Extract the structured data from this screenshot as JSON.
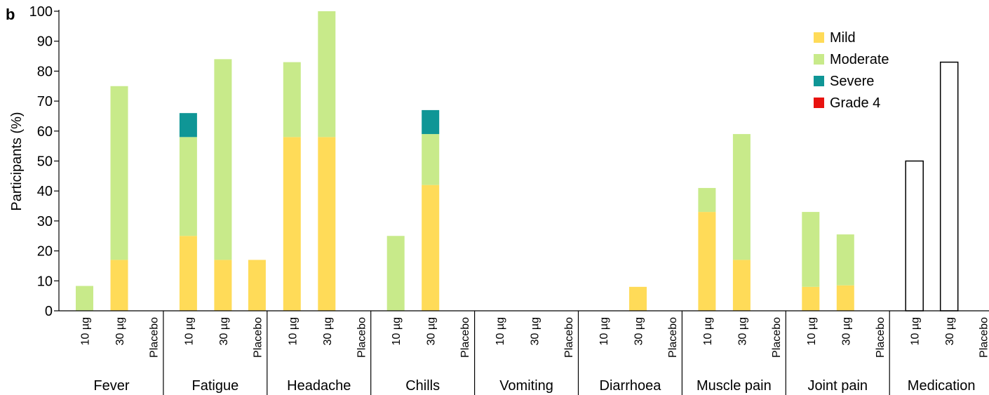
{
  "chart_data": {
    "type": "bar",
    "stacked": true,
    "panel_label": "b",
    "ylabel": "Participants (%)",
    "xlabel": "",
    "ylim": [
      0,
      100
    ],
    "yticks": [
      0,
      10,
      20,
      30,
      40,
      50,
      60,
      70,
      80,
      90,
      100
    ],
    "grid": false,
    "legend_position": "top-right",
    "dose_labels": [
      "10 µg",
      "30 µg",
      "Placebo"
    ],
    "groups": [
      "Fever",
      "Fatigue",
      "Headache",
      "Chills",
      "Vomiting",
      "Diarrhoea",
      "Muscle pain",
      "Joint pain",
      "Medication"
    ],
    "series": [
      {
        "name": "Mild",
        "color": "#FFDB58",
        "values": [
          [
            0,
            17,
            0
          ],
          [
            25,
            17,
            17
          ],
          [
            58,
            58,
            0
          ],
          [
            0,
            42,
            0
          ],
          [
            0,
            0,
            0
          ],
          [
            0,
            8,
            0
          ],
          [
            33,
            17,
            0
          ],
          [
            8,
            8.5,
            0
          ],
          [
            0,
            0,
            0
          ]
        ]
      },
      {
        "name": "Moderate",
        "color": "#C8EA8A",
        "values": [
          [
            8.3,
            58,
            0
          ],
          [
            33,
            67,
            0
          ],
          [
            25,
            42,
            0
          ],
          [
            25,
            17,
            0
          ],
          [
            0,
            0,
            0
          ],
          [
            0,
            0,
            0
          ],
          [
            8,
            42,
            0
          ],
          [
            25,
            17,
            0
          ],
          [
            0,
            0,
            0
          ]
        ]
      },
      {
        "name": "Severe",
        "color": "#0F9696",
        "values": [
          [
            0,
            0,
            0
          ],
          [
            8,
            0,
            0
          ],
          [
            0,
            0,
            0
          ],
          [
            0,
            8,
            0
          ],
          [
            0,
            0,
            0
          ],
          [
            0,
            0,
            0
          ],
          [
            0,
            0,
            0
          ],
          [
            0,
            0,
            0
          ],
          [
            0,
            0,
            0
          ]
        ]
      },
      {
        "name": "Grade 4",
        "color": "#E8120F",
        "values": [
          [
            0,
            0,
            0
          ],
          [
            0,
            0,
            0
          ],
          [
            0,
            0,
            0
          ],
          [
            0,
            0,
            0
          ],
          [
            0,
            0,
            0
          ],
          [
            0,
            0,
            0
          ],
          [
            0,
            0,
            0
          ],
          [
            0,
            0,
            0
          ],
          [
            0,
            0,
            0
          ]
        ]
      }
    ],
    "outline_group": "Medication",
    "outline_values": [
      50,
      83,
      0
    ]
  }
}
